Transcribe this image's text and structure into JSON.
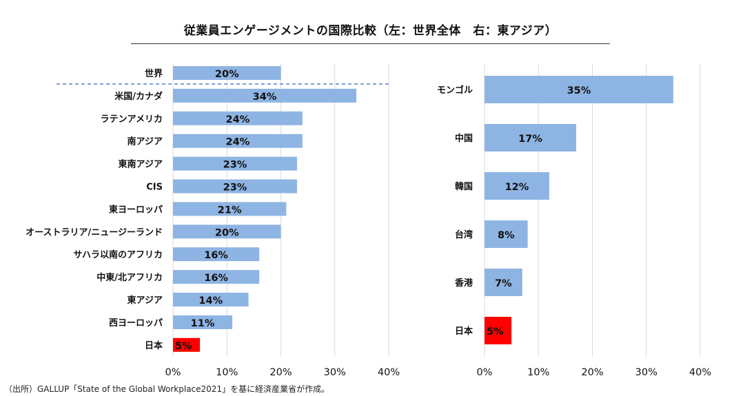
{
  "title": "従業員エンゲージメントの国際比較（左：世界全体　右：東アジア）",
  "source": "（出所）GALLUP「State of the Global Workplace2021」を基に経済産業省が作成。",
  "colors": {
    "bar": "#8eb4e3",
    "highlight": "#ff0000",
    "grid": "#d9d9d9",
    "divider": "#4f81bd"
  },
  "chart_data": [
    {
      "type": "bar",
      "orientation": "horizontal",
      "categories": [
        "世界",
        "米国/カナダ",
        "ラテンアメリカ",
        "南アジア",
        "東南アジア",
        "CIS",
        "東ヨーロッパ",
        "オーストラリア/ニュージーランド",
        "サハラ以南のアフリカ",
        "中東/北アフリカ",
        "東アジア",
        "西ヨーロッパ",
        "日本"
      ],
      "values": [
        20,
        34,
        24,
        24,
        23,
        23,
        21,
        20,
        16,
        16,
        14,
        11,
        5
      ],
      "data_labels": [
        "20%",
        "34%",
        "24%",
        "24%",
        "23%",
        "23%",
        "21%",
        "20%",
        "16%",
        "16%",
        "14%",
        "11%",
        "5%"
      ],
      "highlight": "日本",
      "xlim": [
        0,
        40
      ],
      "xticks": [
        "0%",
        "10%",
        "20%",
        "30%",
        "40%"
      ],
      "grid": true
    },
    {
      "type": "bar",
      "orientation": "horizontal",
      "categories": [
        "モンゴル",
        "中国",
        "韓国",
        "台湾",
        "香港",
        "日本"
      ],
      "values": [
        35,
        17,
        12,
        8,
        7,
        5
      ],
      "data_labels": [
        "35%",
        "17%",
        "12%",
        "8%",
        "7%",
        "5%"
      ],
      "highlight": "日本",
      "xlim": [
        0,
        40
      ],
      "xticks": [
        "0%",
        "10%",
        "20%",
        "30%",
        "40%"
      ],
      "grid": true
    }
  ]
}
